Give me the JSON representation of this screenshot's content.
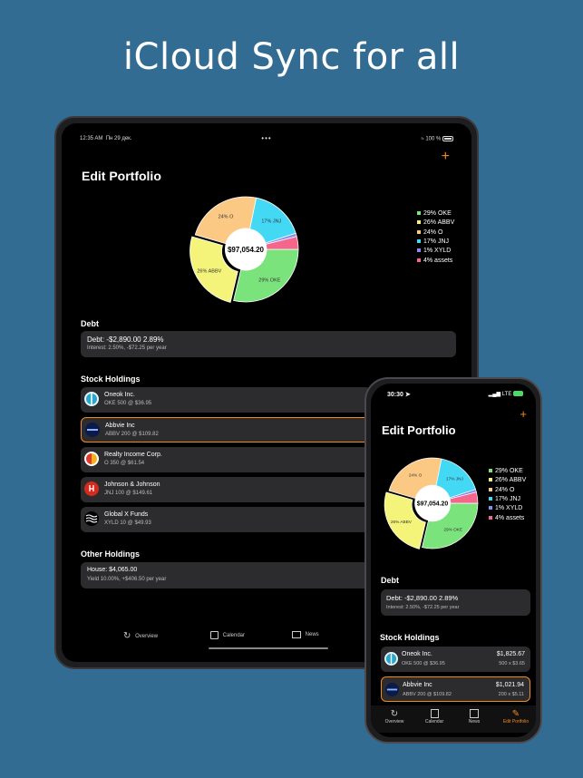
{
  "headline": "iCloud Sync for all",
  "colors": {
    "background": "#336c93",
    "accent": "#f08a24",
    "oke": "#7be37b",
    "abbv": "#f4f47a",
    "o": "#fcc985",
    "jnj": "#43d9f5",
    "xyld": "#8a8af0",
    "assets": "#f4668c"
  },
  "ipad": {
    "status_time": "12:35 AM",
    "status_date": "Пн 29 дек.",
    "status_dots": "•••",
    "status_wifi": "wifi-icon",
    "status_battery": "100 %",
    "add_icon": "+",
    "title": "Edit Portfolio",
    "total": "$97,054.20",
    "debt_section": "Debt",
    "debt_line1": "Debt: -$2,890.00   2.89%",
    "debt_line2": "Interest: 2.50%, -$72.25 per year",
    "stock_section": "Stock Holdings",
    "holdings": [
      {
        "name": "Oneok Inc.",
        "detail": "OKE 500 @ $36.95",
        "logo": "oneok-logo-icon"
      },
      {
        "name": "Abbvie Inc",
        "detail": "ABBV 200 @ $109.82",
        "logo": "abbvie-logo-icon"
      },
      {
        "name": "Realty Income Corp.",
        "detail": "O 350 @ $61.54",
        "logo": "realty-income-logo-icon"
      },
      {
        "name": "Johnson & Johnson",
        "detail": "JNJ 100 @ $149.61",
        "logo": "jnj-logo-icon"
      },
      {
        "name": "Global X Funds",
        "detail": "XYLD 10 @ $49.93",
        "logo": "globalx-logo-icon"
      }
    ],
    "other_section": "Other Holdings",
    "house_line1": "House: $4,065.00",
    "house_line2": "Yield 10.00%, +$406.50 per year",
    "tabs": [
      {
        "label": "Overview",
        "icon": "overview-icon"
      },
      {
        "label": "Calendar",
        "icon": "calendar-icon"
      },
      {
        "label": "News",
        "icon": "news-icon"
      }
    ]
  },
  "iphone": {
    "status_time": "30:30",
    "status_network": "LTE",
    "add_icon": "+",
    "title": "Edit Portfolio",
    "total": "$97,054.20",
    "debt_section": "Debt",
    "debt_line1": "Debt: -$2,890.00   2.89%",
    "debt_line2": "Interest: 2.50%, -$72.25 per year",
    "stock_section": "Stock Holdings",
    "holdings": [
      {
        "name": "Oneok Inc.",
        "detail": "OKE 500 @ $36.95",
        "value": "$1,825.67",
        "shares": "500 x $3.65"
      },
      {
        "name": "Abbvie Inc",
        "detail": "ABBV 200 @ $109.82",
        "value": "$1,021.94",
        "shares": "200 x $5.11"
      }
    ],
    "tabs": [
      {
        "label": "Overview",
        "icon": "overview-icon"
      },
      {
        "label": "Calendar",
        "icon": "calendar-icon"
      },
      {
        "label": "News",
        "icon": "news-icon"
      },
      {
        "label": "Edit Portfolio",
        "icon": "edit-pencil-icon"
      }
    ]
  },
  "chart_data": {
    "type": "pie",
    "categories": [
      "OKE",
      "ABBV",
      "O",
      "JNJ",
      "XYLD",
      "assets"
    ],
    "values": [
      29,
      26,
      24,
      17,
      1,
      4
    ],
    "slice_labels": [
      "29% OKE",
      "26% ABBV",
      "24% O",
      "17% JNJ",
      "",
      ""
    ],
    "legend": [
      "29% OKE",
      "26% ABBV",
      "24% O",
      "17% JNJ",
      "1% XYLD",
      "4% assets"
    ],
    "colors": [
      "#7be37b",
      "#f4f47a",
      "#fcc985",
      "#43d9f5",
      "#8a8af0",
      "#f4668c"
    ],
    "center_label": "$97,054.20",
    "legend_position": "right"
  }
}
